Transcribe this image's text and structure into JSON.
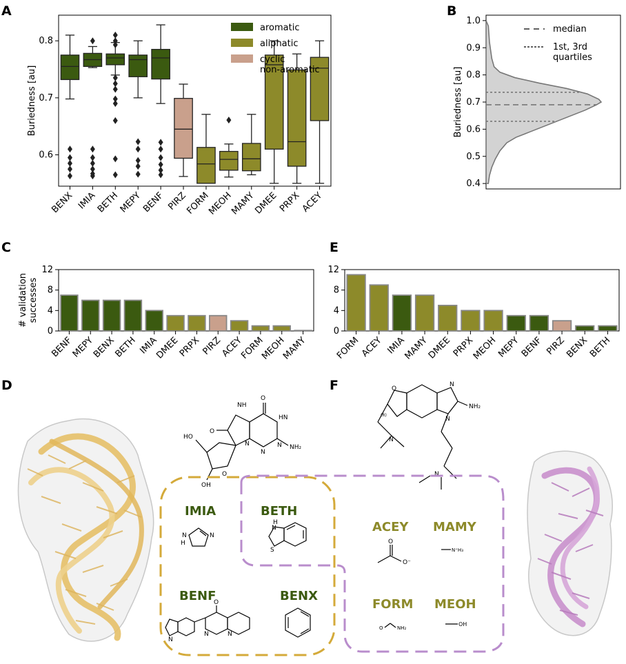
{
  "colors": {
    "aromatic": "#3b5a10",
    "aliphatic": "#8d8a2a",
    "cyclic": "#c9a08c",
    "density_fill": "#d3d3d3",
    "rna_yellow": "#e8c77a",
    "rna_purple": "#c58ac9",
    "group_gold": "#d4aa3a",
    "group_purple": "#b98dcc"
  },
  "panels": {
    "a": "A",
    "b": "B",
    "c": "C",
    "d": "D",
    "e": "E",
    "f": "F"
  },
  "chart_data": [
    {
      "id": "A",
      "type": "box",
      "ylabel": "Buriedness [au]",
      "ylim": [
        0.545,
        0.845
      ],
      "yticks": [
        0.6,
        0.7,
        0.8
      ],
      "legend": [
        {
          "name": "aromatic",
          "color_key": "aromatic"
        },
        {
          "name": "aliphatic",
          "color_key": "aliphatic"
        },
        {
          "name": "cyclic non-aromatic",
          "lines": [
            "cyclic",
            "non-aromatic"
          ],
          "color_key": "cyclic"
        }
      ],
      "legend_position": "top-center",
      "boxes": [
        {
          "label": "BENX",
          "group": "aromatic",
          "whislo": 0.698,
          "q1": 0.732,
          "med": 0.755,
          "q3": 0.775,
          "whishi": 0.81,
          "fliers": [
            0.61,
            0.595,
            0.585,
            0.575,
            0.563
          ]
        },
        {
          "label": "IMIA",
          "group": "aromatic",
          "whislo": 0.753,
          "q1": 0.755,
          "med": 0.767,
          "q3": 0.778,
          "whishi": 0.79,
          "fliers": [
            0.8,
            0.61,
            0.595,
            0.585,
            0.575,
            0.567,
            0.563
          ]
        },
        {
          "label": "BETH",
          "group": "aromatic",
          "whislo": 0.74,
          "q1": 0.758,
          "med": 0.77,
          "q3": 0.777,
          "whishi": 0.797,
          "fliers": [
            0.81,
            0.8,
            0.793,
            0.735,
            0.725,
            0.715,
            0.698,
            0.69,
            0.66,
            0.593,
            0.565
          ]
        },
        {
          "label": "MEPY",
          "group": "aromatic",
          "whislo": 0.7,
          "q1": 0.737,
          "med": 0.767,
          "q3": 0.775,
          "whishi": 0.8,
          "fliers": [
            0.623,
            0.61,
            0.59,
            0.58,
            0.566
          ]
        },
        {
          "label": "BENF",
          "group": "aromatic",
          "whislo": 0.69,
          "q1": 0.733,
          "med": 0.77,
          "q3": 0.785,
          "whishi": 0.828,
          "fliers": [
            0.622,
            0.61,
            0.595,
            0.583,
            0.573,
            0.565
          ]
        },
        {
          "label": "PIRZ",
          "group": "cyclic",
          "whislo": 0.562,
          "q1": 0.594,
          "med": 0.645,
          "q3": 0.699,
          "whishi": 0.724,
          "fliers": []
        },
        {
          "label": "FORM",
          "group": "aliphatic",
          "whislo": 0.55,
          "q1": 0.55,
          "med": 0.584,
          "q3": 0.613,
          "whishi": 0.671,
          "fliers": []
        },
        {
          "label": "MEOH",
          "group": "aliphatic",
          "whislo": 0.561,
          "q1": 0.573,
          "med": 0.592,
          "q3": 0.606,
          "whishi": 0.619,
          "fliers": [
            0.661
          ]
        },
        {
          "label": "MAMY",
          "group": "aliphatic",
          "whislo": 0.565,
          "q1": 0.572,
          "med": 0.593,
          "q3": 0.62,
          "whishi": 0.671,
          "fliers": []
        },
        {
          "label": "DMEE",
          "group": "aliphatic",
          "whislo": 0.55,
          "q1": 0.61,
          "med": 0.758,
          "q3": 0.775,
          "whishi": 0.8,
          "fliers": []
        },
        {
          "label": "PRPX",
          "group": "aliphatic",
          "whislo": 0.55,
          "q1": 0.58,
          "med": 0.623,
          "q3": 0.749,
          "whishi": 0.777,
          "fliers": []
        },
        {
          "label": "ACEY",
          "group": "aliphatic",
          "whislo": 0.55,
          "q1": 0.66,
          "med": 0.752,
          "q3": 0.771,
          "whishi": 0.8,
          "fliers": []
        }
      ]
    },
    {
      "id": "B",
      "type": "density",
      "ylabel": "Buriedness [au]",
      "ylim": [
        0.38,
        1.02
      ],
      "yticks": [
        0.4,
        0.5,
        0.6,
        0.7,
        0.8,
        0.9,
        1.0
      ],
      "density": [
        [
          0.4,
          0.02
        ],
        [
          0.43,
          0.03
        ],
        [
          0.46,
          0.05
        ],
        [
          0.49,
          0.08
        ],
        [
          0.52,
          0.12
        ],
        [
          0.55,
          0.18
        ],
        [
          0.57,
          0.26
        ],
        [
          0.59,
          0.38
        ],
        [
          0.61,
          0.5
        ],
        [
          0.63,
          0.62
        ],
        [
          0.65,
          0.74
        ],
        [
          0.67,
          0.86
        ],
        [
          0.69,
          0.96
        ],
        [
          0.7,
          1.0
        ],
        [
          0.71,
          0.98
        ],
        [
          0.73,
          0.88
        ],
        [
          0.75,
          0.7
        ],
        [
          0.77,
          0.46
        ],
        [
          0.79,
          0.25
        ],
        [
          0.81,
          0.12
        ],
        [
          0.83,
          0.07
        ],
        [
          0.86,
          0.05
        ],
        [
          0.89,
          0.04
        ],
        [
          0.92,
          0.03
        ],
        [
          0.95,
          0.025
        ],
        [
          0.98,
          0.02
        ],
        [
          1.0,
          0.0
        ]
      ],
      "median": 0.69,
      "quartiles": [
        0.629,
        0.736
      ],
      "legend": [
        {
          "name": "median",
          "style": "dashed"
        },
        {
          "name": "1st, 3rd quartiles",
          "lines": [
            "1st, 3rd",
            "quartiles"
          ],
          "style": "dotted"
        }
      ],
      "legend_position": "top-right"
    },
    {
      "id": "C",
      "type": "bar",
      "ylabel": "# validation successes",
      "ylabel_lines": [
        "# validation",
        "successes"
      ],
      "ylim": [
        0,
        12
      ],
      "yticks": [
        0,
        4,
        8,
        12
      ],
      "categories": [
        "BENF",
        "MEPY",
        "BENX",
        "BETH",
        "IMIA",
        "DMEE",
        "PRPX",
        "PIRZ",
        "ACEY",
        "FORM",
        "MEOH",
        "MAMY"
      ],
      "values": [
        7,
        6,
        6,
        6,
        4,
        3,
        3,
        3,
        2,
        1,
        1,
        0.1
      ],
      "groups": [
        "aromatic",
        "aromatic",
        "aromatic",
        "aromatic",
        "aromatic",
        "aliphatic",
        "aliphatic",
        "cyclic",
        "aliphatic",
        "aliphatic",
        "aliphatic",
        "aliphatic"
      ]
    },
    {
      "id": "E",
      "type": "bar",
      "ylim": [
        0,
        12
      ],
      "yticks": [
        0,
        4,
        8,
        12
      ],
      "categories": [
        "FORM",
        "ACEY",
        "IMIA",
        "MAMY",
        "DMEE",
        "PRPX",
        "MEOH",
        "MEPY",
        "BENF",
        "PIRZ",
        "BENX",
        "BETH"
      ],
      "values": [
        11,
        9,
        7,
        7,
        5,
        4,
        4,
        3,
        3,
        2,
        1,
        1
      ],
      "groups": [
        "aliphatic",
        "aliphatic",
        "aromatic",
        "aliphatic",
        "aliphatic",
        "aliphatic",
        "aliphatic",
        "aromatic",
        "aromatic",
        "cyclic",
        "aromatic",
        "aromatic"
      ]
    }
  ],
  "fragments": {
    "IMIA": "IMIA",
    "BETH": "BETH",
    "BENF": "BENF",
    "BENX": "BENX",
    "ACEY": "ACEY",
    "MAMY": "MAMY",
    "FORM": "FORM",
    "MEOH": "MEOH"
  },
  "chem_labels": {
    "d": {
      "o_top": "O",
      "nh": "NH",
      "hn": "HN",
      "o_left": "O",
      "n1": "N",
      "n2": "N",
      "n3": "N",
      "nh2": "NH₂",
      "ho": "HO",
      "o_ring": "O",
      "oh": "OH"
    },
    "f": {
      "o": "O",
      "n_top": "N",
      "n_right": "N",
      "nh2": "NH₂",
      "n_left": "N",
      "n_bottom": "N",
      "r": "(R)"
    },
    "imia_n1": "N",
    "imia_nh": "N",
    "imia_h": "H",
    "beth_h": "H",
    "beth_n": "N",
    "beth_s": "S",
    "benf_o": "O",
    "benf_n1": "N",
    "benf_n2": "N",
    "benf_n3": "N",
    "acey_o1": "O",
    "acey_o2": "O⁻",
    "mamy": "N⁺H₃",
    "form_o": "O",
    "form_nh2": "NH₂",
    "meoh": "OH"
  }
}
